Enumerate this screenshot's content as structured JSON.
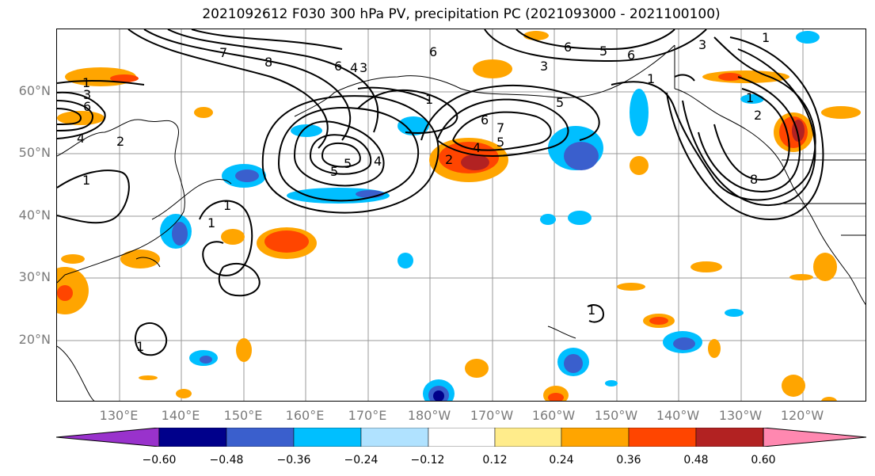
{
  "title": "2021092612 F030 300 hPa PV, precipitation PC (2021093000 - 2021100100)",
  "lat_labels": [
    "60°N",
    "50°N",
    "40°N",
    "30°N",
    "20°N"
  ],
  "lon_labels": [
    "130°E",
    "140°E",
    "150°E",
    "160°E",
    "170°E",
    "180°W",
    "170°W",
    "160°W",
    "150°W",
    "140°W",
    "130°W",
    "120°W"
  ],
  "colorbar": {
    "levels": [
      "−0.60",
      "−0.48",
      "−0.36",
      "−0.24",
      "−0.12",
      "0.12",
      "0.24",
      "0.36",
      "0.48",
      "0.60"
    ],
    "colors": [
      "#9932CC",
      "#00008B",
      "#3A5FCD",
      "#00BFFF",
      "#B0E2FF",
      "#FFFFFF",
      "#FFEC8B",
      "#FFA500",
      "#FF4500",
      "#B22222",
      "#FF88B0"
    ]
  },
  "contour_labels": [
    "1",
    "3",
    "6",
    "4",
    "2",
    "1",
    "1",
    "1",
    "7",
    "8",
    "6",
    "4",
    "3",
    "1",
    "6",
    "3",
    "6",
    "5",
    "5",
    "4",
    "5",
    "2",
    "4",
    "5",
    "6",
    "7",
    "5",
    "6",
    "1",
    "3",
    "8",
    "2",
    "1",
    "1",
    "1",
    "1"
  ]
}
